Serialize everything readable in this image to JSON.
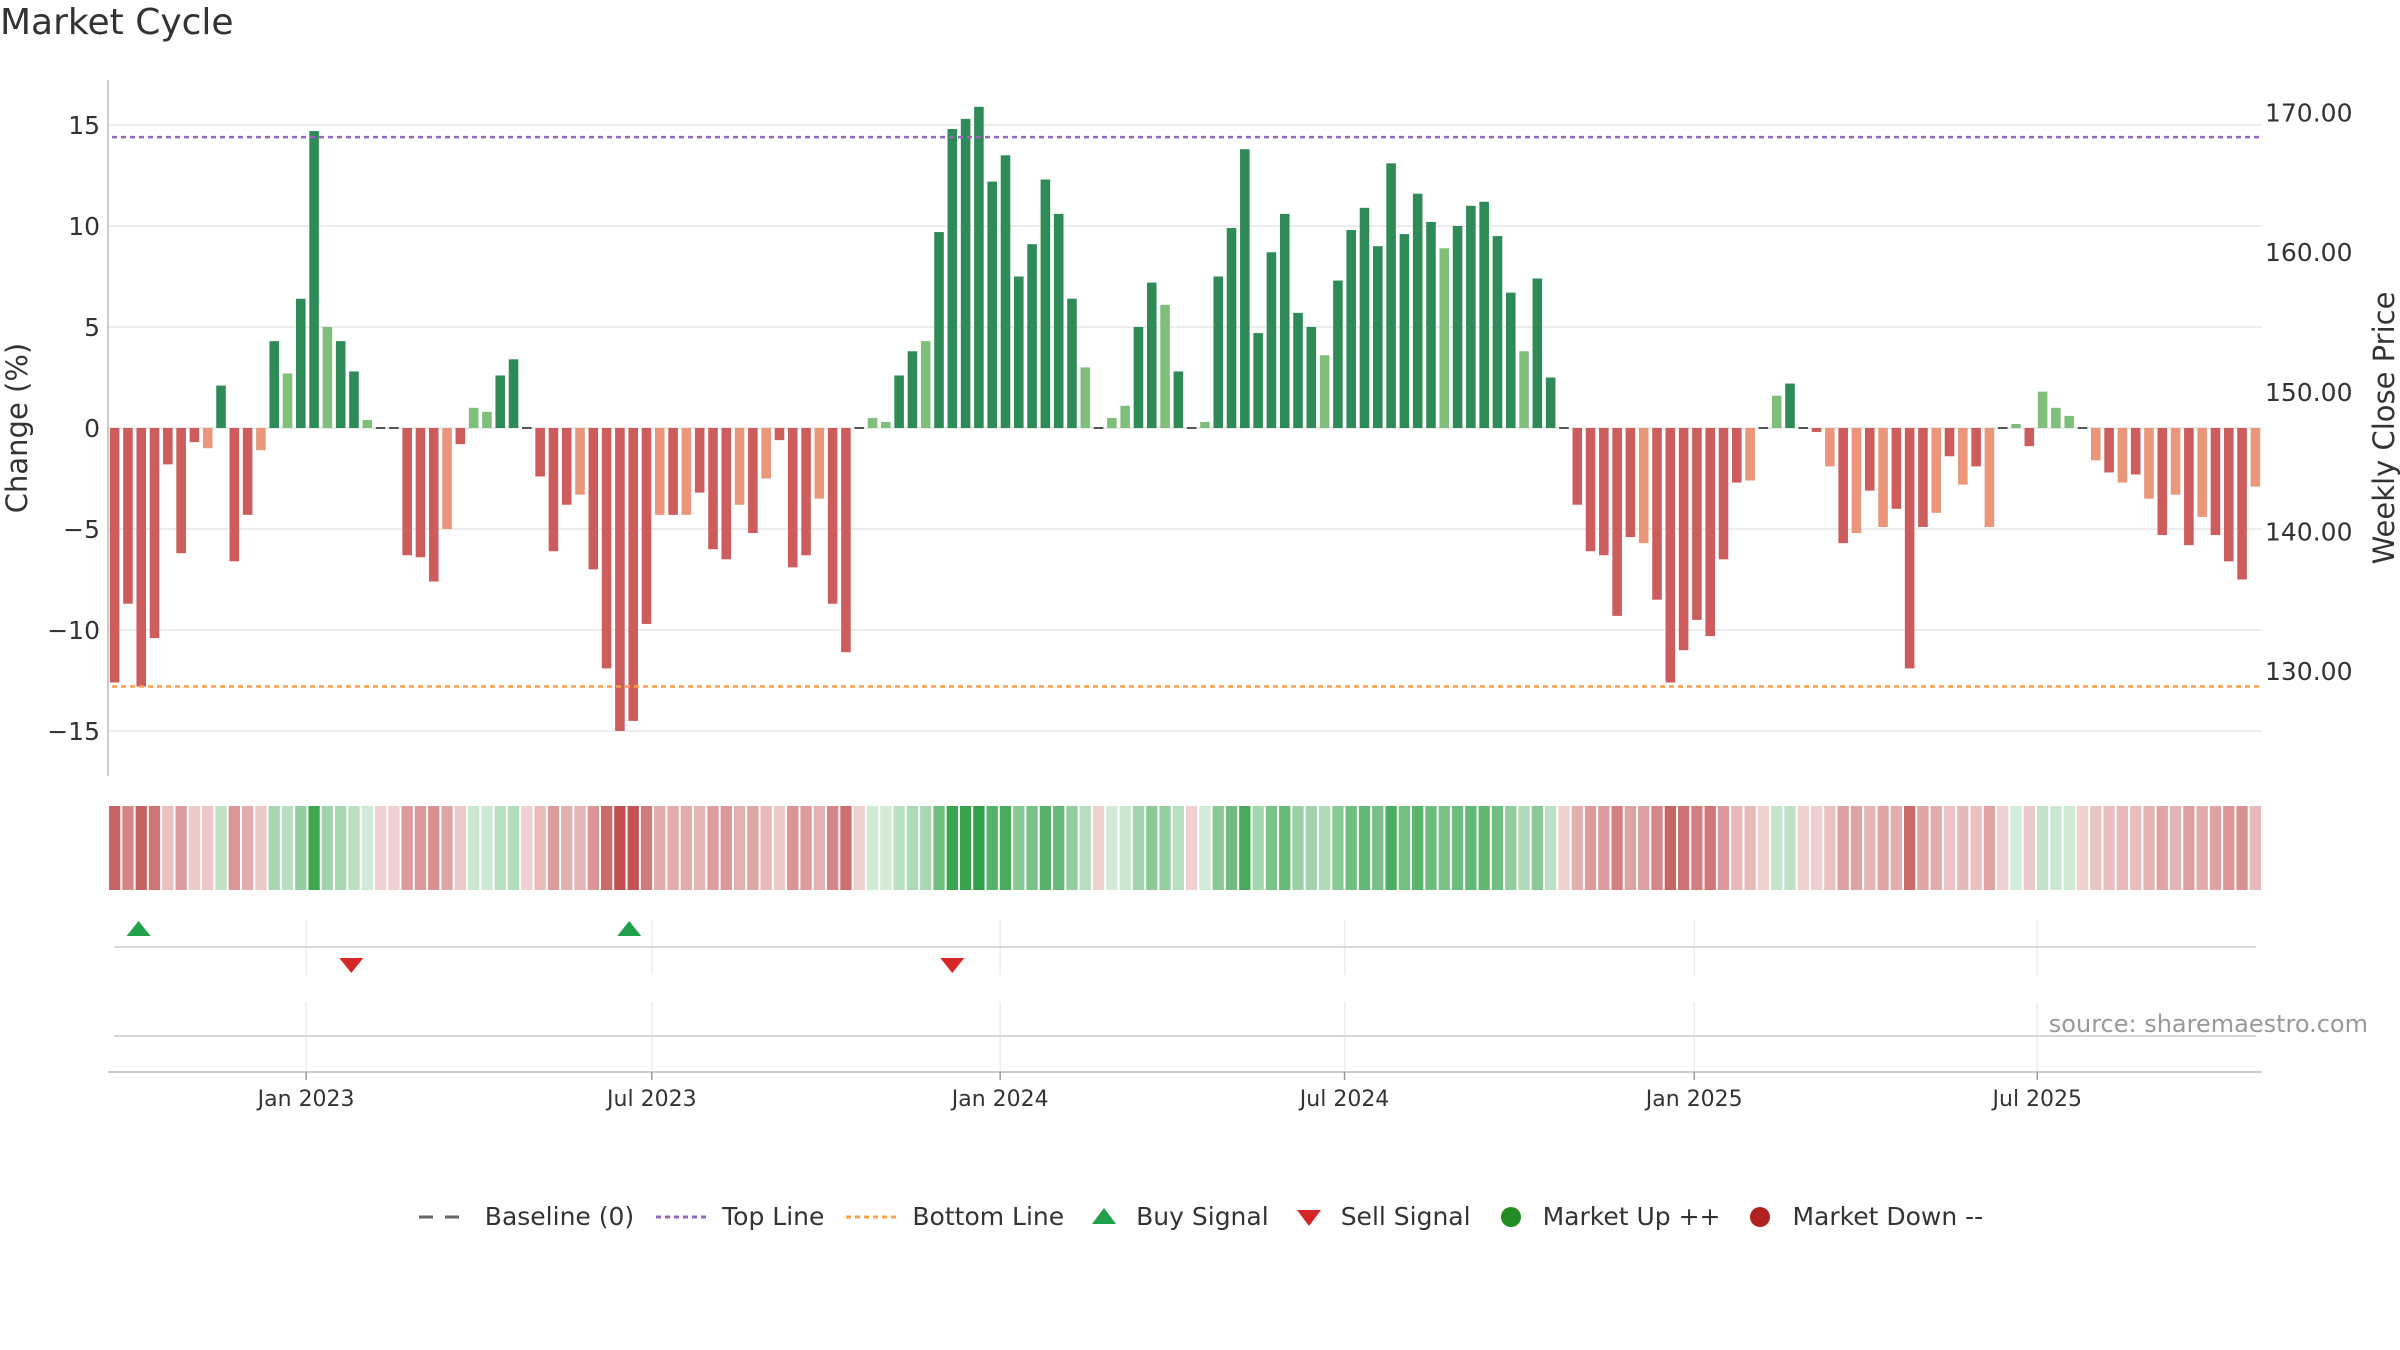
{
  "title": "Market Cycle",
  "source": "source: sharemaestro.com",
  "colors": {
    "green_dark": "#2e8b57",
    "green_light": "#7fbf7b",
    "red_dark": "#cd5c5c",
    "red_light": "#e9967a",
    "top_line": "#9467bd",
    "bottom_line": "#ff9f4a",
    "baseline": "#666666",
    "buy": "#22a04b",
    "sell": "#d62728",
    "market_up": "#228b22",
    "market_down": "#b22222"
  },
  "chart_data": {
    "type": "bar",
    "title": "Market Cycle",
    "ylabel": "Change (%)",
    "y2label": "Weekly Close Price",
    "ylim": [
      -17,
      16
    ],
    "yticks": [
      -15,
      -10,
      -5,
      0,
      5,
      10,
      15
    ],
    "y2ticks": [
      "130.00",
      "140.00",
      "150.00",
      "160.00",
      "170.00"
    ],
    "y2ticks_values": [
      130,
      140,
      150,
      160,
      170
    ],
    "y2lim": [
      122.5,
      171.6
    ],
    "xlabels": [
      "Jan 2023",
      "Jul 2023",
      "Jan 2024",
      "Jul 2024",
      "Jan 2025",
      "Jul 2025"
    ],
    "xlabel_weeks": [
      14.9,
      40.9,
      67.1,
      93.0,
      119.3,
      145.1
    ],
    "top_line": 14.4,
    "bottom_line": -12.8,
    "series": [
      {
        "name": "Change (%)",
        "values": [
          -12.6,
          -8.7,
          -12.8,
          -10.4,
          -1.8,
          -6.2,
          -0.7,
          -1.0,
          2.1,
          -6.6,
          -4.3,
          -1.1,
          4.3,
          2.7,
          6.4,
          14.7,
          5.0,
          4.3,
          2.8,
          0.4,
          0,
          0,
          -6.3,
          -6.4,
          -7.6,
          -5.0,
          -0.8,
          1.0,
          0.8,
          2.6,
          3.4,
          0,
          -2.4,
          -6.1,
          -3.8,
          -3.3,
          -7.0,
          -11.9,
          -15.0,
          -14.5,
          -9.7,
          -4.3,
          -4.3,
          -4.3,
          -3.2,
          -6.0,
          -6.5,
          -3.8,
          -5.2,
          -2.5,
          -0.6,
          -6.9,
          -6.3,
          -3.5,
          -8.7,
          -11.1,
          0,
          0.5,
          0.3,
          2.6,
          3.8,
          4.3,
          9.7,
          14.8,
          15.3,
          15.9,
          12.2,
          13.5,
          7.5,
          9.1,
          12.3,
          10.6,
          6.4,
          3.0,
          0,
          0.5,
          1.1,
          5.0,
          7.2,
          6.1,
          2.8,
          0,
          0.3,
          7.5,
          9.9,
          13.8,
          4.7,
          8.7,
          10.6,
          5.7,
          5.0,
          3.6,
          7.3,
          9.8,
          10.9,
          9.0,
          13.1,
          9.6,
          11.6,
          10.2,
          8.9,
          10.0,
          11.0,
          11.2,
          9.5,
          6.7,
          3.8,
          7.4,
          2.5,
          0,
          -3.8,
          -6.1,
          -6.3,
          -9.3,
          -5.4,
          -5.7,
          -8.5,
          -12.6,
          -11.0,
          -9.5,
          -10.3,
          -6.5,
          -2.7,
          -2.6,
          0,
          1.6,
          2.2,
          0,
          -0.2,
          -1.9,
          -5.7,
          -5.2,
          -3.1,
          -4.9,
          -4.0,
          -11.9,
          -4.9,
          -4.2,
          -1.4,
          -2.8,
          -1.9,
          -4.9,
          0,
          0.2,
          -0.9,
          1.8,
          1.0,
          0.6,
          0,
          -1.6,
          -2.2,
          -2.7,
          -2.3,
          -3.5,
          -5.3,
          -3.3,
          -5.8,
          -4.4,
          -5.3,
          -6.6,
          -7.5,
          -2.9
        ]
      }
    ],
    "heat_row": {
      "name": "Market Cycle heat"
    },
    "signals": {
      "buy_weeks": [
        2.3,
        39.2
      ],
      "sell_weeks": [
        18.3,
        63.5
      ]
    },
    "legend": [
      "Baseline (0)",
      "Top Line",
      "Bottom Line",
      "Buy Signal",
      "Sell Signal",
      "Market Up ++",
      "Market Down --"
    ]
  }
}
